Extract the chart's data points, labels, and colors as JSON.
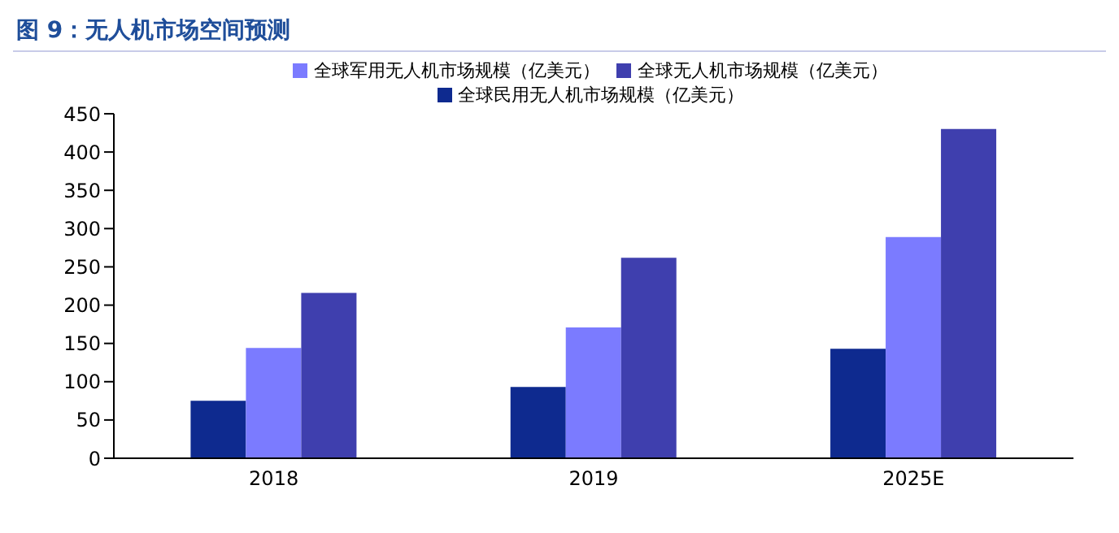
{
  "chart_data": {
    "type": "bar",
    "title": "图 9：无人机市场空间预测",
    "categories": [
      "2018",
      "2019",
      "2025E"
    ],
    "series": [
      {
        "name": "全球民用无人机市场规模（亿美元）",
        "color": "#0e2a8f",
        "values": [
          75,
          93,
          143
        ]
      },
      {
        "name": "全球军用无人机市场规模（亿美元）",
        "color": "#7b7bff",
        "values": [
          144,
          171,
          289
        ]
      },
      {
        "name": "全球无人机市场规模（亿美元）",
        "color": "#3f3fae",
        "values": [
          216,
          262,
          430
        ]
      }
    ],
    "ylim": [
      0,
      450
    ],
    "yticks": [
      0,
      50,
      100,
      150,
      200,
      250,
      300,
      350,
      400,
      450
    ],
    "grid": false,
    "legend": "top"
  }
}
